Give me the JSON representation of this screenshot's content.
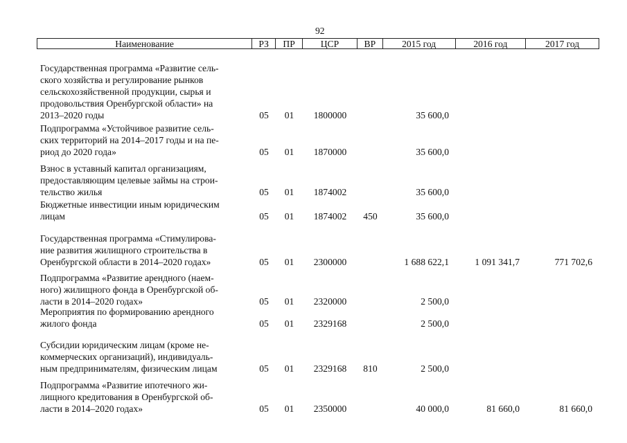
{
  "page_number": "92",
  "headers": [
    "Наименование",
    "РЗ",
    "ПР",
    "ЦСР",
    "ВР",
    "2015 год",
    "2016 год",
    "2017 год"
  ],
  "rows": [
    {
      "name": "Государственная программа «Развитие сель-\nского хозяйства и регулирование рынков\nсельскохозяйственной продукции, сырья и\nпродовольствия Оренбургской области» на\n2013–2020 годы",
      "rz": "05",
      "pr": "01",
      "csr": "1800000",
      "vr": "",
      "y2015": "35 600,0",
      "y2016": "",
      "y2017": ""
    },
    {
      "name": "Подпрограмма «Устойчивое развитие сель-\nских территорий на 2014–2017 годы и на пе-\nриод до 2020 года»",
      "rz": "05",
      "pr": "01",
      "csr": "1870000",
      "vr": "",
      "y2015": "35 600,0",
      "y2016": "",
      "y2017": ""
    },
    {
      "name": "Взнос в уставный капитал организациям,\nпредоставляющим целевые займы на строи-\nтельство жилья",
      "rz": "05",
      "pr": "01",
      "csr": "1874002",
      "vr": "",
      "y2015": "35 600,0",
      "y2016": "",
      "y2017": ""
    },
    {
      "name": "Бюджетные инвестиции иным юридическим\nлицам",
      "rz": "05",
      "pr": "01",
      "csr": "1874002",
      "vr": "450",
      "y2015": "35 600,0",
      "y2016": "",
      "y2017": ""
    },
    {
      "name": "Государственная программа «Стимулирова-\nние развития жилищного строительства в\nОренбургской области в 2014–2020 годах»",
      "rz": "05",
      "pr": "01",
      "csr": "2300000",
      "vr": "",
      "y2015": "1 688 622,1",
      "y2016": "1 091 341,7",
      "y2017": "771 702,6"
    },
    {
      "name": "Подпрограмма «Развитие арендного (наем-\nного) жилищного фонда в Оренбургской об-\nласти в 2014–2020 годах»",
      "rz": "05",
      "pr": "01",
      "csr": "2320000",
      "vr": "",
      "y2015": "2 500,0",
      "y2016": "",
      "y2017": ""
    },
    {
      "name": "Мероприятия по формированию арендного\nжилого фонда",
      "rz": "05",
      "pr": "01",
      "csr": "2329168",
      "vr": "",
      "y2015": "2 500,0",
      "y2016": "",
      "y2017": ""
    },
    {
      "name": "Субсидии юридическим лицам (кроме не-\nкоммерческих организаций), индивидуаль-\nным предпринимателям, физическим лицам",
      "rz": "05",
      "pr": "01",
      "csr": "2329168",
      "vr": "810",
      "y2015": "2 500,0",
      "y2016": "",
      "y2017": ""
    },
    {
      "name": "Подпрограмма «Развитие ипотечного жи-\nлищного кредитования в Оренбургской об-\nласти в 2014–2020 годах»",
      "rz": "05",
      "pr": "01",
      "csr": "2350000",
      "vr": "",
      "y2015": "40 000,0",
      "y2016": "81 660,0",
      "y2017": "81 660,0"
    }
  ]
}
